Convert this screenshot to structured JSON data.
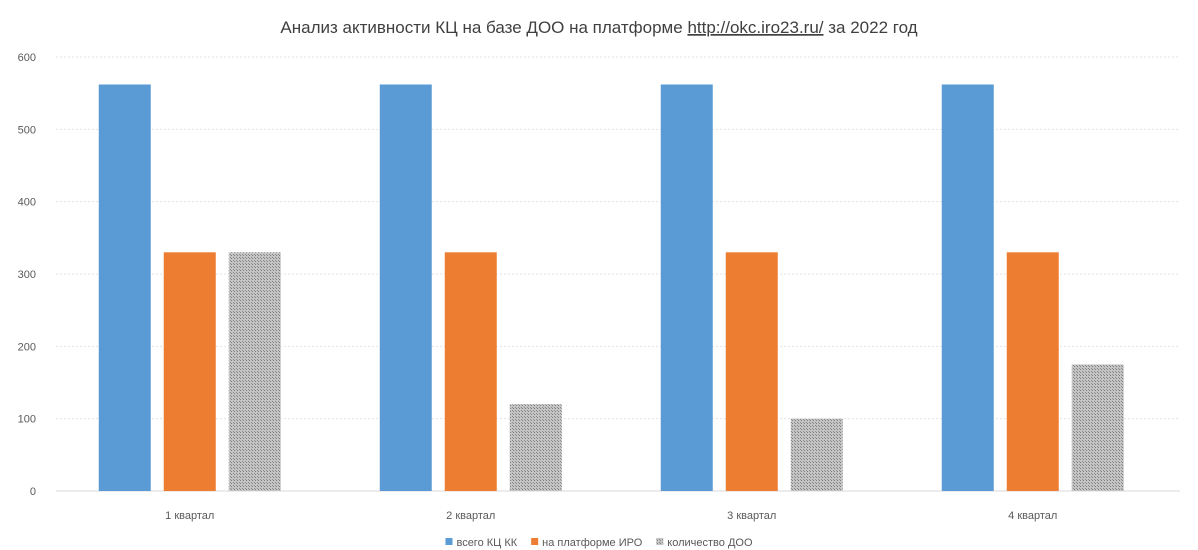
{
  "chart_data": {
    "type": "bar",
    "title": {
      "before": "Анализ активности КЦ на базе ДОО на платформе ",
      "link": "http://okc.iro23.ru/",
      "after": " за 2022 год"
    },
    "categories": [
      "1 квартал",
      "2 квартал",
      "3 квартал",
      "4 квартал"
    ],
    "series": [
      {
        "name": "всего КЦ КК",
        "values": [
          562,
          562,
          562,
          562
        ],
        "color": "#5b9bd5"
      },
      {
        "name": "на платформе ИРО",
        "values": [
          330,
          330,
          330,
          330
        ],
        "color": "#ed7d31"
      },
      {
        "name": "количество ДОО",
        "values": [
          330,
          120,
          100,
          175
        ],
        "color": "#a5a5a5",
        "pattern": "dotted-gray"
      }
    ],
    "ylim": [
      0,
      600
    ],
    "yticks": [
      0,
      100,
      200,
      300,
      400,
      500,
      600
    ],
    "grid": true,
    "legend_position": "bottom",
    "xlabel": "",
    "ylabel": ""
  }
}
